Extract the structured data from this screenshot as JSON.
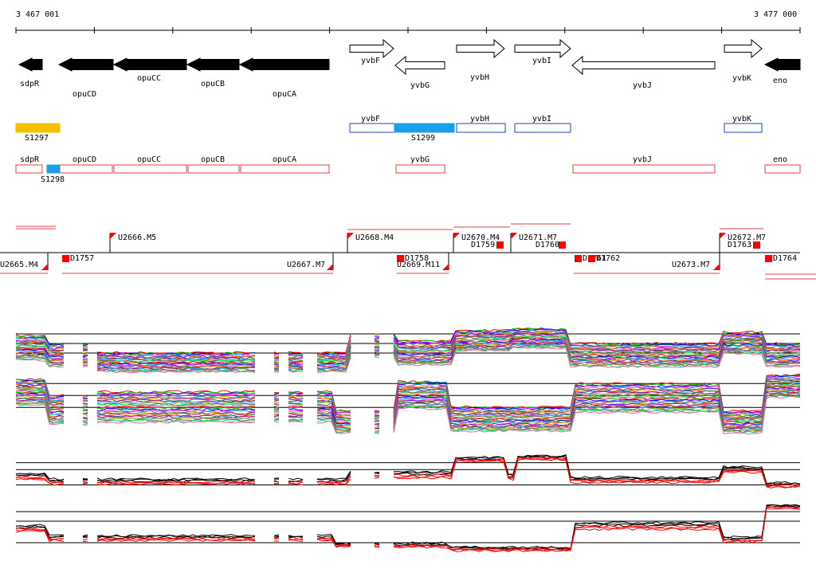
{
  "coordinates": {
    "start": "3 467 001",
    "end": "3 477 000"
  },
  "colors": {
    "gene_fill": "#000000",
    "gene_outline": "#000000",
    "feature_yellow": "#f5c000",
    "feature_blue": "#1aa0e8",
    "operon_blue": "#1f3fd0",
    "operon_red": "#e04040",
    "promoter_red": "#ff0000",
    "trace_black": "#000000",
    "trace_red": "#ff0000"
  },
  "genes": [
    {
      "name": "sdpR",
      "strand": "-",
      "filled": true
    },
    {
      "name": "opuCD",
      "strand": "-",
      "filled": true
    },
    {
      "name": "opuCC",
      "strand": "-",
      "filled": true
    },
    {
      "name": "opuCB",
      "strand": "-",
      "filled": true
    },
    {
      "name": "opuCA",
      "strand": "-",
      "filled": true
    },
    {
      "name": "yvbF",
      "strand": "+",
      "filled": false
    },
    {
      "name": "yvbG",
      "strand": "-",
      "filled": false
    },
    {
      "name": "yvbH",
      "strand": "+",
      "filled": false
    },
    {
      "name": "yvbI",
      "strand": "+",
      "filled": false
    },
    {
      "name": "yvbJ",
      "strand": "-",
      "filled": false
    },
    {
      "name": "yvbK",
      "strand": "+",
      "filled": false
    },
    {
      "name": "eno",
      "strand": "-",
      "filled": true
    }
  ],
  "segments": {
    "top": [
      {
        "label": "S1297",
        "kind": "yellow-bar"
      },
      {
        "label": "yvbF",
        "kind": "blue-box"
      },
      {
        "label": "S1299",
        "kind": "blue-bar"
      },
      {
        "label": "yvbH",
        "kind": "blue-box"
      },
      {
        "label": "yvbI",
        "kind": "blue-box"
      },
      {
        "label": "yvbK",
        "kind": "blue-box"
      }
    ],
    "bottom": [
      {
        "label": "sdpR",
        "kind": "red-box"
      },
      {
        "label": "S1298",
        "kind": "blue-bar"
      },
      {
        "label": "opuCD",
        "kind": "red-box"
      },
      {
        "label": "opuCC",
        "kind": "red-box"
      },
      {
        "label": "opuCB",
        "kind": "red-box"
      },
      {
        "label": "opuCA",
        "kind": "red-box"
      },
      {
        "label": "yvbG",
        "kind": "red-box"
      },
      {
        "label": "yvbJ",
        "kind": "red-box"
      },
      {
        "label": "eno",
        "kind": "red-box"
      }
    ]
  },
  "upshifts_top": [
    "U2666.M5",
    "U2668.M4",
    "U2670.M4",
    "U2671.M7",
    "U2672.M7"
  ],
  "upshifts_bottom": [
    "U2665.M4",
    "U2667.M7",
    "U2669.M11",
    "U2673.M7"
  ],
  "downshifts": [
    "D1757",
    "D1758",
    "D1759",
    "D1760",
    "D1761",
    "D1762",
    "D1763",
    "D1764"
  ]
}
